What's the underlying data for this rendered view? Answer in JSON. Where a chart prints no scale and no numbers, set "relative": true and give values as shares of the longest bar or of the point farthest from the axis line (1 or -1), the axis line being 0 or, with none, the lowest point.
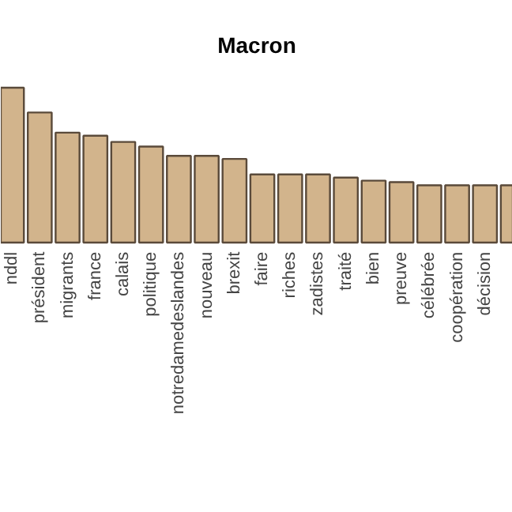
{
  "chart_data": {
    "type": "bar",
    "title": "Macron",
    "relative": true,
    "color": "#d2b48c",
    "categories": [
      "nddl",
      "président",
      "migrants",
      "france",
      "calais",
      "politique",
      "notredamedeslandes",
      "nouveau",
      "brexit",
      "faire",
      "riches",
      "zadistes",
      "traité",
      "bien",
      "preuve",
      "célébrée",
      "coopération",
      "décision",
      null
    ],
    "values": [
      1,
      0.84,
      0.71,
      0.69,
      0.65,
      0.62,
      0.56,
      0.56,
      0.54,
      0.44,
      0.44,
      0.44,
      0.42,
      0.4,
      0.39,
      0.37,
      0.37,
      0.37,
      0.37
    ]
  }
}
